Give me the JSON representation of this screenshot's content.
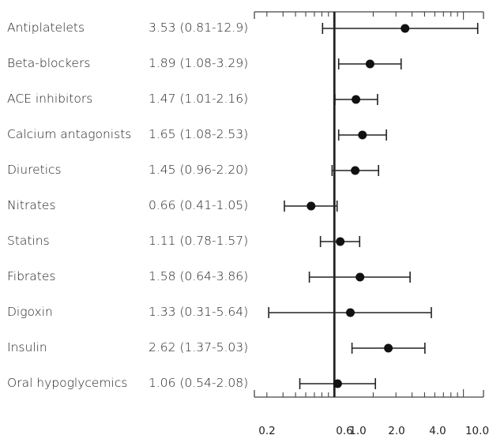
{
  "chart_data": {
    "type": "forest",
    "title": "",
    "xlabel": "",
    "ylabel": "",
    "x_scale": "log",
    "x_ticks": [
      0.2,
      0.6,
      1.0,
      2.0,
      4.0,
      10.0
    ],
    "x_tick_labels": [
      "0.2",
      "0.6",
      "1.0",
      "2.0",
      "4.0",
      "10.0"
    ],
    "reference_line": 1.0,
    "grid": false,
    "rows": [
      {
        "label": "Antiplatelets",
        "ci_text": "3.53 (0.81-12.9)",
        "estimate": 3.53,
        "lower": 0.81,
        "upper": 12.9
      },
      {
        "label": "Beta-blockers",
        "ci_text": "1.89 (1.08-3.29)",
        "estimate": 1.89,
        "lower": 1.08,
        "upper": 3.29
      },
      {
        "label": "ACE  inhibitors",
        "ci_text": "1.47 (1.01-2.16)",
        "estimate": 1.47,
        "lower": 1.01,
        "upper": 2.16
      },
      {
        "label": "Calcium antagonists",
        "ci_text": "1.65 (1.08-2.53)",
        "estimate": 1.65,
        "lower": 1.08,
        "upper": 2.53
      },
      {
        "label": "Diuretics",
        "ci_text": "1.45 (0.96-2.20)",
        "estimate": 1.45,
        "lower": 0.96,
        "upper": 2.2
      },
      {
        "label": "Nitrates",
        "ci_text": "0.66 (0.41-1.05)",
        "estimate": 0.66,
        "lower": 0.41,
        "upper": 1.05
      },
      {
        "label": "Statins",
        "ci_text": "1.11 (0.78-1.57)",
        "estimate": 1.11,
        "lower": 0.78,
        "upper": 1.57
      },
      {
        "label": "Fibrates",
        "ci_text": "1.58 (0.64-3.86)",
        "estimate": 1.58,
        "lower": 0.64,
        "upper": 3.86
      },
      {
        "label": "Digoxin",
        "ci_text": "1.33 (0.31-5.64)",
        "estimate": 1.33,
        "lower": 0.31,
        "upper": 5.64
      },
      {
        "label": "Insulin",
        "ci_text": "2.62 (1.37-5.03)",
        "estimate": 2.62,
        "lower": 1.37,
        "upper": 5.03
      },
      {
        "label": "Oral hypoglycemics",
        "ci_text": "1.06 (0.54-2.08)",
        "estimate": 1.06,
        "lower": 0.54,
        "upper": 2.08
      }
    ]
  }
}
